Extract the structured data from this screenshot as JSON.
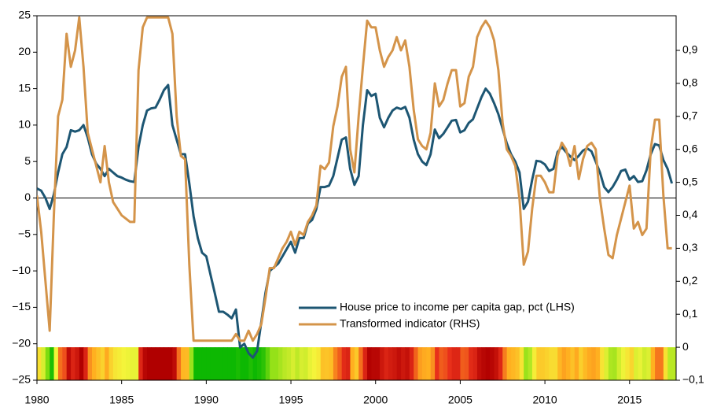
{
  "chart_data": {
    "type": "line",
    "x": [
      1980,
      1980.25,
      1980.5,
      1980.75,
      1981,
      1981.25,
      1981.5,
      1981.75,
      1982,
      1982.25,
      1982.5,
      1982.75,
      1983,
      1983.25,
      1983.5,
      1983.75,
      1984,
      1984.25,
      1984.5,
      1984.75,
      1985,
      1985.25,
      1985.5,
      1985.75,
      1986,
      1986.25,
      1986.5,
      1986.75,
      1987,
      1987.25,
      1987.5,
      1987.75,
      1988,
      1988.25,
      1988.5,
      1988.75,
      1989,
      1989.25,
      1989.5,
      1989.75,
      1990,
      1990.25,
      1990.5,
      1990.75,
      1991,
      1991.25,
      1991.5,
      1991.75,
      1992,
      1992.25,
      1992.5,
      1992.75,
      1993,
      1993.25,
      1993.5,
      1993.75,
      1994,
      1994.25,
      1994.5,
      1994.75,
      1995,
      1995.25,
      1995.5,
      1995.75,
      1996,
      1996.25,
      1996.5,
      1996.75,
      1997,
      1997.25,
      1997.5,
      1997.75,
      1998,
      1998.25,
      1998.5,
      1998.75,
      1999,
      1999.25,
      1999.5,
      1999.75,
      2000,
      2000.25,
      2000.5,
      2000.75,
      2001,
      2001.25,
      2001.5,
      2001.75,
      2002,
      2002.25,
      2002.5,
      2002.75,
      2003,
      2003.25,
      2003.5,
      2003.75,
      2004,
      2004.25,
      2004.5,
      2004.75,
      2005,
      2005.25,
      2005.5,
      2005.75,
      2006,
      2006.25,
      2006.5,
      2006.75,
      2007,
      2007.25,
      2007.5,
      2007.75,
      2008,
      2008.25,
      2008.5,
      2008.75,
      2009,
      2009.25,
      2009.5,
      2009.75,
      2010,
      2010.25,
      2010.5,
      2010.75,
      2011,
      2011.25,
      2011.5,
      2011.75,
      2012,
      2012.25,
      2012.5,
      2012.75,
      2013,
      2013.25,
      2013.5,
      2013.75,
      2014,
      2014.25,
      2014.5,
      2014.75,
      2015,
      2015.25,
      2015.5,
      2015.75,
      2016,
      2016.25,
      2016.5,
      2016.75,
      2017,
      2017.25,
      2017.5
    ],
    "series": [
      {
        "name": "House price to income per capita gap, pct (LHS)",
        "color": "#1d5673",
        "axis": "y",
        "values": [
          1.3,
          1.0,
          0,
          -1.5,
          0.5,
          3.5,
          6,
          7,
          9.3,
          9.1,
          9.3,
          10,
          8.3,
          6,
          4.7,
          4,
          3,
          4,
          3.5,
          3,
          2.8,
          2.5,
          2.3,
          2.2,
          7,
          10,
          12,
          12.3,
          12.4,
          13.5,
          14.8,
          15.5,
          10,
          8,
          6,
          6,
          2,
          -2.5,
          -5.5,
          -7.5,
          -8,
          -10.5,
          -13,
          -15.6,
          -15.6,
          -16,
          -16.5,
          -15.3,
          -20.5,
          -20,
          -21.3,
          -21.9,
          -21,
          -17,
          -13,
          -10,
          -9.5,
          -9,
          -8,
          -7,
          -6,
          -7.5,
          -5.5,
          -5.5,
          -3.5,
          -3,
          -1.5,
          1.5,
          1.5,
          1.7,
          3,
          5.5,
          8,
          8.3,
          4,
          1.8,
          3,
          10,
          14.8,
          14,
          14.3,
          11,
          9.7,
          11,
          12,
          12.4,
          12.2,
          12.5,
          11,
          8,
          6,
          5,
          4.5,
          6,
          9.4,
          8.2,
          8.8,
          9.7,
          10.6,
          10.7,
          9,
          9.3,
          10.3,
          10.8,
          12.3,
          13.8,
          15,
          14.3,
          13,
          11.5,
          9.5,
          7.5,
          6,
          5,
          3.5,
          -1.5,
          -0.5,
          2.5,
          5.1,
          5,
          4.6,
          3.7,
          4,
          6.3,
          7,
          6.3,
          5.7,
          5.2,
          5.8,
          6.5,
          6.8,
          6.4,
          5,
          3.5,
          1.5,
          0.8,
          1.5,
          2.5,
          3.7,
          3.9,
          2.5,
          3,
          2.2,
          2.3,
          3.8,
          6,
          7.4,
          7.2,
          5.2,
          4,
          2
        ]
      },
      {
        "name": "Transformed indicator (RHS)",
        "color": "#d4944a",
        "axis": "y2",
        "values": [
          0.46,
          0.35,
          0.2,
          0.05,
          0.4,
          0.7,
          0.75,
          0.95,
          0.85,
          0.9,
          1.0,
          0.85,
          0.65,
          0.6,
          0.55,
          0.5,
          0.61,
          0.5,
          0.44,
          0.42,
          0.4,
          0.39,
          0.38,
          0.38,
          0.84,
          0.97,
          1.0,
          1.0,
          1.0,
          1.0,
          1.0,
          1.0,
          0.95,
          0.7,
          0.58,
          0.57,
          0.25,
          0.02,
          0.02,
          0.02,
          0.02,
          0.02,
          0.02,
          0.02,
          0.02,
          0.02,
          0.02,
          0.04,
          0.02,
          0.02,
          0.05,
          0.02,
          0.04,
          0.07,
          0.15,
          0.24,
          0.24,
          0.27,
          0.3,
          0.32,
          0.35,
          0.31,
          0.35,
          0.34,
          0.38,
          0.4,
          0.43,
          0.55,
          0.54,
          0.56,
          0.67,
          0.73,
          0.82,
          0.85,
          0.6,
          0.53,
          0.7,
          0.85,
          0.99,
          0.97,
          0.97,
          0.9,
          0.85,
          0.88,
          0.9,
          0.94,
          0.9,
          0.93,
          0.85,
          0.72,
          0.63,
          0.61,
          0.6,
          0.65,
          0.8,
          0.73,
          0.75,
          0.8,
          0.84,
          0.84,
          0.73,
          0.74,
          0.82,
          0.85,
          0.94,
          0.97,
          0.99,
          0.97,
          0.93,
          0.84,
          0.68,
          0.6,
          0.58,
          0.55,
          0.45,
          0.25,
          0.29,
          0.42,
          0.52,
          0.52,
          0.5,
          0.47,
          0.47,
          0.58,
          0.62,
          0.6,
          0.55,
          0.61,
          0.51,
          0.57,
          0.61,
          0.62,
          0.6,
          0.45,
          0.36,
          0.28,
          0.27,
          0.34,
          0.39,
          0.44,
          0.49,
          0.36,
          0.38,
          0.34,
          0.36,
          0.6,
          0.69,
          0.69,
          0.46,
          0.3,
          0.3
        ]
      }
    ],
    "xlim": [
      1980,
      2017.75
    ],
    "xticks": [
      1980,
      1985,
      1990,
      1995,
      2000,
      2005,
      2010,
      2015
    ],
    "ylim": [
      -25,
      25
    ],
    "yticks": [
      {
        "value": -25,
        "label": "−25"
      },
      {
        "value": -20,
        "label": "−20"
      },
      {
        "value": -15,
        "label": "−15"
      },
      {
        "value": -10,
        "label": "−10"
      },
      {
        "value": -5,
        "label": "−5"
      },
      0,
      5,
      10,
      15,
      20,
      25
    ],
    "y2lim": [
      -0.1,
      1.005
    ],
    "y2ticks": [
      {
        "value": -0.1,
        "label": "−0,1"
      },
      0,
      {
        "value": 0.1,
        "label": "0,1"
      },
      {
        "value": 0.2,
        "label": "0,2"
      },
      {
        "value": 0.3,
        "label": "0,3"
      },
      {
        "value": 0.4,
        "label": "0,4"
      },
      {
        "value": 0.5,
        "label": "0,5"
      },
      {
        "value": 0.6,
        "label": "0,6"
      },
      {
        "value": 0.7,
        "label": "0,7"
      },
      {
        "value": 0.8,
        "label": "0,8"
      },
      {
        "value": 0.9,
        "label": "0,9"
      }
    ],
    "strip_colors": [
      "#00b400",
      "#7ddc10",
      "#f4f43a",
      "#ffb020",
      "#e8301a",
      "#b00000"
    ],
    "zero_line": true,
    "legend": "lower right"
  }
}
